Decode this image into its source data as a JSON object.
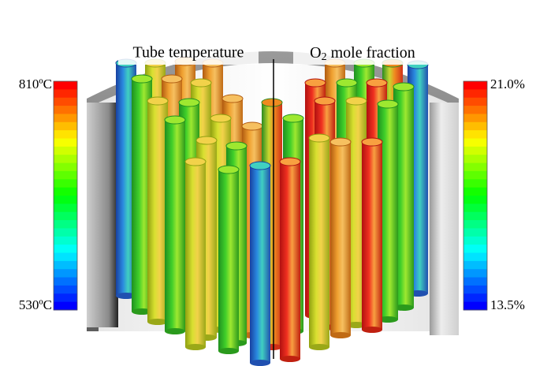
{
  "left_label": "Tube temperature",
  "right_label": {
    "base": "O",
    "subscript": "2",
    "rest": " mole fraction"
  },
  "left_colorbar": {
    "max": "810ºC",
    "min": "530ºC"
  },
  "right_colorbar": {
    "max": "21.0%",
    "min": "13.5%"
  }
}
